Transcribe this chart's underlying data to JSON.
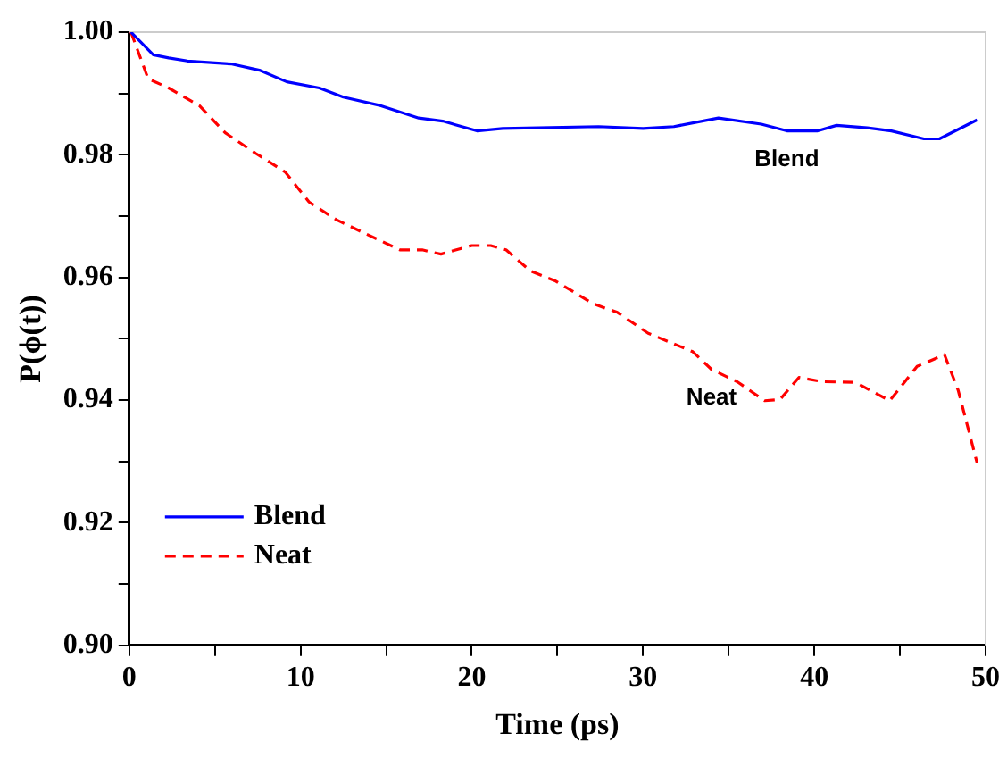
{
  "chart_data": {
    "type": "line",
    "xlabel": "Time (ps)",
    "ylabel": "P(ϕ(t))",
    "xlim": [
      0,
      50
    ],
    "xticks": [
      0,
      {
        "value": 5,
        "label": null
      },
      10,
      {
        "value": 15,
        "label": null
      },
      20,
      {
        "value": 25,
        "label": null
      },
      30,
      {
        "value": 35,
        "label": null
      },
      40,
      {
        "value": 45,
        "label": null
      },
      50
    ],
    "ylim": [
      0.9,
      1.0
    ],
    "yticks": [
      {
        "value": 0.9,
        "label": "0.90"
      },
      {
        "value": 0.91,
        "label": null
      },
      0.92,
      {
        "value": 0.93,
        "label": null
      },
      0.94,
      {
        "value": 0.95,
        "label": null
      },
      0.96,
      {
        "value": 0.97,
        "label": null
      },
      0.98,
      {
        "value": 0.99,
        "label": null
      },
      {
        "value": 1.0,
        "label": "1.00"
      }
    ],
    "grid": false,
    "legend": "bottom left",
    "marker": "none",
    "series": [
      {
        "name": "Blend",
        "color": "#0000ff",
        "line_style": "solid",
        "x": [
          0.1,
          1.4,
          2.3,
          3.4,
          6.0,
          7.6,
          9.2,
          11.1,
          12.5,
          14.7,
          16.9,
          18.3,
          20.3,
          21.8,
          27.4,
          30.0,
          31.8,
          34.4,
          36.9,
          38.4,
          40.2,
          41.3,
          43.1,
          44.5,
          46.4,
          47.3,
          49.5
        ],
        "values": [
          1.0,
          0.9963,
          0.9958,
          0.9953,
          0.9948,
          0.9938,
          0.9919,
          0.9909,
          0.9894,
          0.988,
          0.986,
          0.9855,
          0.9839,
          0.9843,
          0.9846,
          0.9843,
          0.9846,
          0.986,
          0.985,
          0.9839,
          0.9839,
          0.9848,
          0.9844,
          0.9839,
          0.9826,
          0.9826,
          0.9857
        ]
      },
      {
        "name": "Neat",
        "color": "#ff0000",
        "line_style": "dashed",
        "x": [
          0.1,
          1.1,
          2.3,
          4.1,
          5.6,
          7.4,
          9.1,
          10.5,
          12.1,
          13.6,
          15.8,
          17.1,
          18.2,
          20.0,
          21.1,
          22.0,
          23.4,
          24.9,
          27.1,
          28.5,
          30.3,
          32.9,
          34.0,
          35.5,
          37.1,
          38.0,
          39.1,
          40.5,
          42.4,
          44.4,
          46.0,
          47.6,
          48.4,
          49.5
        ],
        "values": [
          1.0,
          0.9924,
          0.9909,
          0.988,
          0.9836,
          0.9802,
          0.9772,
          0.9723,
          0.9694,
          0.9674,
          0.9645,
          0.9645,
          0.9638,
          0.9652,
          0.9652,
          0.9645,
          0.9611,
          0.9594,
          0.9557,
          0.9543,
          0.9509,
          0.9479,
          0.945,
          0.943,
          0.9399,
          0.9401,
          0.9437,
          0.943,
          0.9429,
          0.9399,
          0.9455,
          0.9474,
          0.9416,
          0.9298
        ]
      }
    ],
    "annotations": [
      {
        "text": "Blend",
        "x": 38.4,
        "y": 0.9839
      },
      {
        "text": "Neat",
        "x": 34.0,
        "y": 0.945
      }
    ]
  }
}
